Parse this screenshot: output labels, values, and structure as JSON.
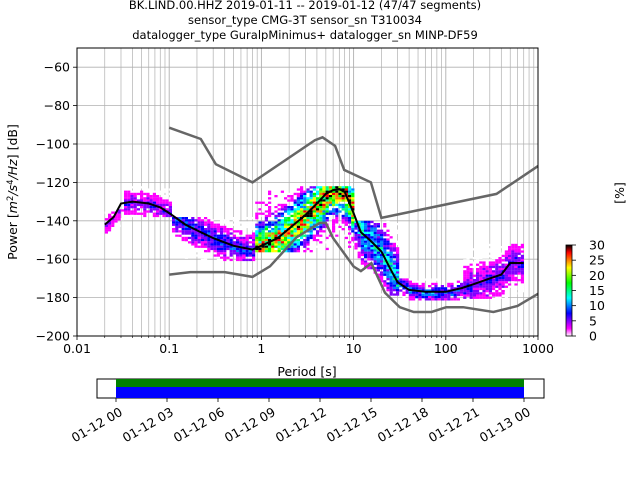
{
  "title_lines": [
    "BK.LIND.00.HHZ   2019-01-11 -- 2019-01-12  (47/47 segments)",
    "sensor_type CMG-3T sensor_sn T310034",
    "datalogger_type GuralpMinimus+ datalogger_sn MINP-DF59"
  ],
  "colors": {
    "noise_models": "#666666",
    "median": "#000000",
    "coverage_green": "#008000",
    "coverage_blue": "#0000ff"
  },
  "chart_data": {
    "type": "heatmap",
    "subtype": "probabilistic power spectral density",
    "xlabel": "Period [s]",
    "ylabel_parts": [
      "Power [",
      "m",
      "2",
      "/s",
      "4",
      "/Hz",
      "] [dB]"
    ],
    "x_scale": "log",
    "xlim": [
      0.01,
      1000
    ],
    "ylim": [
      -200,
      -50
    ],
    "x_ticks": [
      {
        "value": 0.01,
        "label": "0.01"
      },
      {
        "value": 0.1,
        "label": "0.1"
      },
      {
        "value": 1,
        "label": "1"
      },
      {
        "value": 10,
        "label": "10"
      },
      {
        "value": 100,
        "label": "100"
      },
      {
        "value": 1000,
        "label": "1000"
      }
    ],
    "y_ticks": [
      {
        "value": -60,
        "label": "−60"
      },
      {
        "value": -80,
        "label": "−80"
      },
      {
        "value": -100,
        "label": "−100"
      },
      {
        "value": -120,
        "label": "−120"
      },
      {
        "value": -140,
        "label": "−140"
      },
      {
        "value": -160,
        "label": "−160"
      },
      {
        "value": -180,
        "label": "−180"
      },
      {
        "value": -200,
        "label": "−200"
      }
    ],
    "grid": true,
    "colorbar": {
      "label": "[%]",
      "range": [
        0,
        30
      ],
      "ticks": [
        {
          "value": 0,
          "label": "0"
        },
        {
          "value": 5,
          "label": "5"
        },
        {
          "value": 10,
          "label": "10"
        },
        {
          "value": 15,
          "label": "15"
        },
        {
          "value": 20,
          "label": "20"
        },
        {
          "value": 25,
          "label": "25"
        },
        {
          "value": 30,
          "label": "30"
        }
      ],
      "colors": [
        "#ffffff",
        "#ff00ff",
        "#8000ff",
        "#0000ff",
        "#0080ff",
        "#00ffff",
        "#00ff80",
        "#00ff00",
        "#80ff00",
        "#ffff00",
        "#ff8000",
        "#ff0000",
        "#000000"
      ]
    },
    "high_noise_model": [
      [
        0.1,
        -91.5
      ],
      [
        0.22,
        -97.4
      ],
      [
        0.32,
        -110.5
      ],
      [
        0.8,
        -120
      ],
      [
        3.8,
        -98
      ],
      [
        4.6,
        -96.5
      ],
      [
        6.3,
        -101
      ],
      [
        7.9,
        -113.5
      ],
      [
        15.4,
        -120
      ],
      [
        20,
        -138.5
      ],
      [
        354.8,
        -126
      ],
      [
        1000,
        -111.5
      ]
    ],
    "low_noise_model": [
      [
        0.1,
        -168
      ],
      [
        0.17,
        -166.7
      ],
      [
        0.4,
        -166.7
      ],
      [
        0.8,
        -169.2
      ],
      [
        1.24,
        -163.7
      ],
      [
        2.4,
        -148.6
      ],
      [
        4.3,
        -141.1
      ],
      [
        5,
        -141.1
      ],
      [
        6,
        -149
      ],
      [
        10,
        -163.8
      ],
      [
        12,
        -166.2
      ],
      [
        15.6,
        -162.1
      ],
      [
        21.9,
        -177.5
      ],
      [
        31.6,
        -185
      ],
      [
        45,
        -187.5
      ],
      [
        70,
        -187.5
      ],
      [
        101,
        -185
      ],
      [
        154,
        -185
      ],
      [
        328,
        -187.5
      ],
      [
        600,
        -184.4
      ],
      [
        1000,
        -178
      ]
    ],
    "median": [
      [
        0.02,
        -142
      ],
      [
        0.025,
        -138
      ],
      [
        0.03,
        -131
      ],
      [
        0.04,
        -130
      ],
      [
        0.06,
        -131
      ],
      [
        0.08,
        -133
      ],
      [
        0.1,
        -136
      ],
      [
        0.15,
        -142
      ],
      [
        0.2,
        -145
      ],
      [
        0.3,
        -149
      ],
      [
        0.5,
        -153
      ],
      [
        0.8,
        -155
      ],
      [
        1,
        -153
      ],
      [
        1.5,
        -149
      ],
      [
        2,
        -144
      ],
      [
        3,
        -137
      ],
      [
        4,
        -131
      ],
      [
        5,
        -126
      ],
      [
        6,
        -124
      ],
      [
        7,
        -123.5
      ],
      [
        8,
        -125
      ],
      [
        10,
        -136
      ],
      [
        12,
        -146
      ],
      [
        15,
        -150
      ],
      [
        20,
        -156
      ],
      [
        25,
        -165
      ],
      [
        30,
        -172
      ],
      [
        40,
        -176
      ],
      [
        60,
        -177
      ],
      [
        100,
        -177
      ],
      [
        150,
        -175
      ],
      [
        200,
        -173
      ],
      [
        300,
        -170
      ],
      [
        400,
        -168
      ],
      [
        500,
        -162
      ],
      [
        700,
        -162
      ]
    ],
    "histogram": [
      {
        "x_range": [
          0.02,
          0.03
        ],
        "y_range": [
          -146,
          -134
        ],
        "percent": 5
      },
      {
        "x_range": [
          0.03,
          0.1
        ],
        "y_range": [
          -138,
          -122
        ],
        "percent": 6
      },
      {
        "x_range": [
          0.1,
          0.8
        ],
        "y_range": [
          -160,
          -138
        ],
        "percent": 8
      },
      {
        "x_range": [
          0.8,
          10
        ],
        "y_range": [
          -156,
          -122
        ],
        "percent": 25
      },
      {
        "x_range": [
          10,
          30
        ],
        "y_range": [
          -178,
          -140
        ],
        "percent": 12
      },
      {
        "x_range": [
          30,
          150
        ],
        "y_range": [
          -181,
          -170
        ],
        "percent": 10
      },
      {
        "x_range": [
          150,
          700
        ],
        "y_range": [
          -180,
          -152
        ],
        "percent": 6
      }
    ],
    "coverage": {
      "x_ticks": [
        {
          "pos": 0,
          "label": "01-12 00"
        },
        {
          "pos": 0.125,
          "label": "01-12 03"
        },
        {
          "pos": 0.25,
          "label": "01-12 06"
        },
        {
          "pos": 0.375,
          "label": "01-12 09"
        },
        {
          "pos": 0.5,
          "label": "01-12 12"
        },
        {
          "pos": 0.625,
          "label": "01-12 15"
        },
        {
          "pos": 0.75,
          "label": "01-12 18"
        },
        {
          "pos": 0.875,
          "label": "01-12 21"
        },
        {
          "pos": 1,
          "label": "01-13 00"
        }
      ]
    }
  }
}
